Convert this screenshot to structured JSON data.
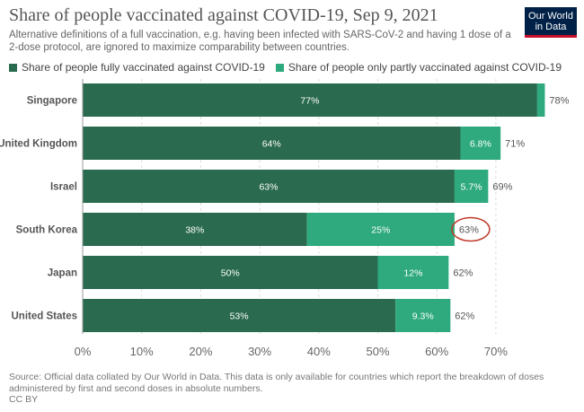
{
  "header": {
    "title": "Share of people vaccinated against COVID-19, Sep 9, 2021",
    "subtitle": "Alternative definitions of a full vaccination, e.g. having been infected with SARS-CoV-2 and having 1 dose of a 2-dose protocol, are ignored to maximize comparability between countries.",
    "logo_line1": "Our World",
    "logo_line2": "in Data"
  },
  "legend": {
    "fully_label": "Share of people fully vaccinated against COVID-19",
    "partly_label": "Share of people only partly vaccinated against COVID-19"
  },
  "colors": {
    "fully": "#2a6a4e",
    "partly": "#2eaa7e",
    "highlight_circle": "#c0392b",
    "logo_bg": "#002147",
    "logo_accent": "#c8102e"
  },
  "chart_data": {
    "type": "bar",
    "orientation": "horizontal",
    "stacked": true,
    "categories": [
      "Singapore",
      "United Kingdom",
      "Israel",
      "South Korea",
      "Japan",
      "United States"
    ],
    "series": [
      {
        "name": "Share of people fully vaccinated against COVID-19",
        "values": [
          77,
          64,
          63,
          38,
          50,
          53
        ],
        "labels": [
          "77%",
          "64%",
          "63%",
          "38%",
          "50%",
          "53%"
        ]
      },
      {
        "name": "Share of people only partly vaccinated against COVID-19",
        "values": [
          1.3,
          6.8,
          5.7,
          25,
          12,
          9.3
        ],
        "labels": [
          "",
          "6.8%",
          "5.7%",
          "25%",
          "12%",
          "9.3%"
        ]
      }
    ],
    "totals": [
      "78%",
      "71%",
      "69%",
      "63%",
      "62%",
      "62%"
    ],
    "highlighted_total": "South Korea",
    "xlim": [
      0,
      80
    ],
    "xticks": [
      0,
      10,
      20,
      30,
      40,
      50,
      60,
      70
    ],
    "xtick_labels": [
      "0%",
      "10%",
      "20%",
      "30%",
      "40%",
      "50%",
      "60%",
      "70%"
    ],
    "grid": true
  },
  "footer": {
    "source": "Source: Official data collated by Our World in Data. This data is only available for countries which report the breakdown of doses administered by first and second doses in absolute numbers.",
    "license": "CC BY"
  }
}
